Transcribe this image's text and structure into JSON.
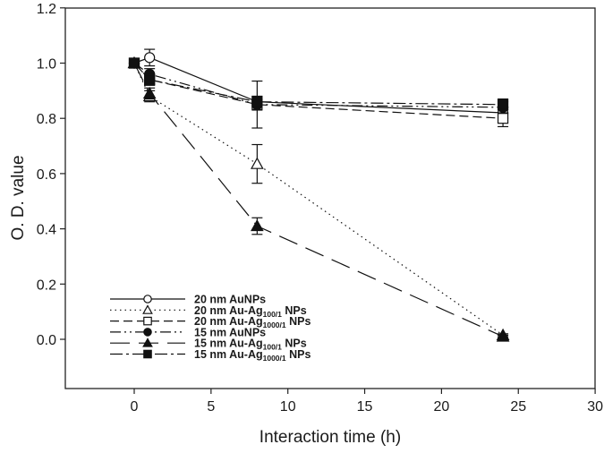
{
  "chart_data": {
    "type": "line",
    "title": "",
    "xlabel": "Interaction time (h)",
    "ylabel": "O. D. value",
    "xlim": [
      -4.5,
      30
    ],
    "ylim": [
      -0.18,
      1.2
    ],
    "xticks": [
      0,
      5,
      10,
      15,
      20,
      25,
      30
    ],
    "yticks": [
      0.0,
      0.2,
      0.4,
      0.6,
      0.8,
      1.0,
      1.2
    ],
    "ytick_labels": [
      "0.0",
      "0.2",
      "0.4",
      "0.6",
      "0.8",
      "1.0",
      "1.2"
    ],
    "grid": false,
    "legend_position": "lower left",
    "x": [
      0,
      1,
      8,
      24
    ],
    "series": [
      {
        "name": "20 nm AuNPs",
        "label_main": "20 nm AuNPs",
        "label_sub": "",
        "label_tail": "",
        "marker": "circle-open",
        "dash": "",
        "values": [
          1.0,
          1.02,
          0.86,
          0.82
        ],
        "errors": [
          0.0,
          0.03,
          0.02,
          0.02
        ]
      },
      {
        "name": "20 nm Au-Ag100/1 NPs",
        "label_main": "20 nm Au-Ag",
        "label_sub": "100/1",
        "label_tail": " NPs",
        "marker": "triangle-open",
        "dash": "1.5,4",
        "values": [
          1.0,
          0.88,
          0.635,
          0.015
        ],
        "errors": [
          0.0,
          0.02,
          0.07,
          0.005
        ]
      },
      {
        "name": "20 nm Au-Ag1000/1 NPs",
        "label_main": "20 nm Au-Ag",
        "label_sub": "1000/1",
        "label_tail": " NPs",
        "marker": "square-open",
        "dash": "10,5",
        "values": [
          1.0,
          0.94,
          0.85,
          0.8
        ],
        "errors": [
          0.0,
          0.02,
          0.085,
          0.03
        ]
      },
      {
        "name": "15 nm AuNPs",
        "label_main": "15 nm AuNPs",
        "label_sub": "",
        "label_tail": "",
        "marker": "circle-filled",
        "dash": "12,4,2,4,2,4",
        "values": [
          1.0,
          0.96,
          0.85,
          0.84
        ],
        "errors": [
          0.0,
          0.02,
          0.02,
          0.02
        ]
      },
      {
        "name": "15 nm Au-Ag100/1 NPs",
        "label_main": "15 nm Au-Ag",
        "label_sub": "100/1",
        "label_tail": " NPs",
        "marker": "triangle-filled",
        "dash": "22,10",
        "values": [
          1.0,
          0.89,
          0.41,
          0.01
        ],
        "errors": [
          0.0,
          0.02,
          0.03,
          0.005
        ]
      },
      {
        "name": "15 nm Au-Ag1000/1 NPs",
        "label_main": "15 nm Au-Ag",
        "label_sub": "1000/1",
        "label_tail": " NPs",
        "marker": "square-filled",
        "dash": "14,4,3,4",
        "values": [
          1.0,
          0.94,
          0.86,
          0.85
        ],
        "errors": [
          0.0,
          0.02,
          0.02,
          0.02
        ]
      }
    ]
  }
}
